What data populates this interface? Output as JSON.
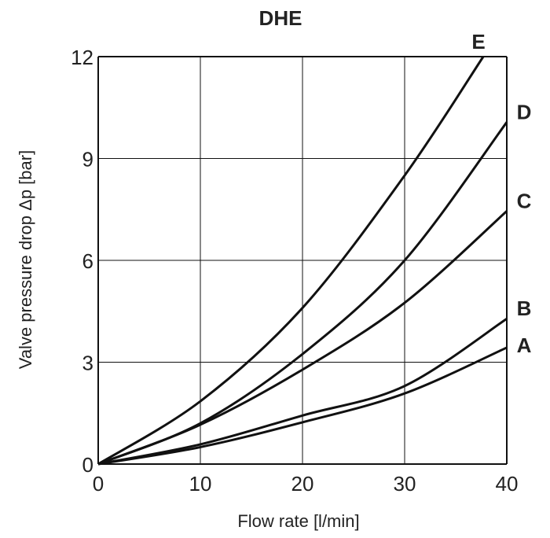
{
  "chart_data": {
    "type": "line",
    "title": "DHE",
    "xlabel": "Flow rate [l/min]",
    "ylabel": "Valve pressure drop Δp [bar]",
    "xlim": [
      0,
      40
    ],
    "ylim": [
      0,
      12
    ],
    "xticks": [
      "0",
      "10",
      "20",
      "30",
      "40"
    ],
    "yticks": [
      "0",
      "3",
      "6",
      "9",
      "12"
    ],
    "grid": true,
    "series": [
      {
        "name": "A",
        "x": [
          0,
          10,
          20,
          30,
          40
        ],
        "y": [
          0,
          0.5,
          1.23,
          2.08,
          3.43
        ]
      },
      {
        "name": "B",
        "x": [
          0,
          10,
          20,
          30,
          40
        ],
        "y": [
          0,
          0.58,
          1.43,
          2.3,
          4.28
        ]
      },
      {
        "name": "C",
        "x": [
          0,
          10,
          20,
          30,
          40
        ],
        "y": [
          0,
          1.16,
          2.78,
          4.75,
          7.45
        ]
      },
      {
        "name": "D",
        "x": [
          0,
          10,
          20,
          30,
          40
        ],
        "y": [
          0,
          1.2,
          3.24,
          6.0,
          10.07
        ]
      },
      {
        "name": "E",
        "x": [
          0,
          10,
          20,
          30,
          37.7
        ],
        "y": [
          0,
          1.85,
          4.6,
          8.5,
          12
        ]
      }
    ],
    "line_color": "#111111"
  }
}
